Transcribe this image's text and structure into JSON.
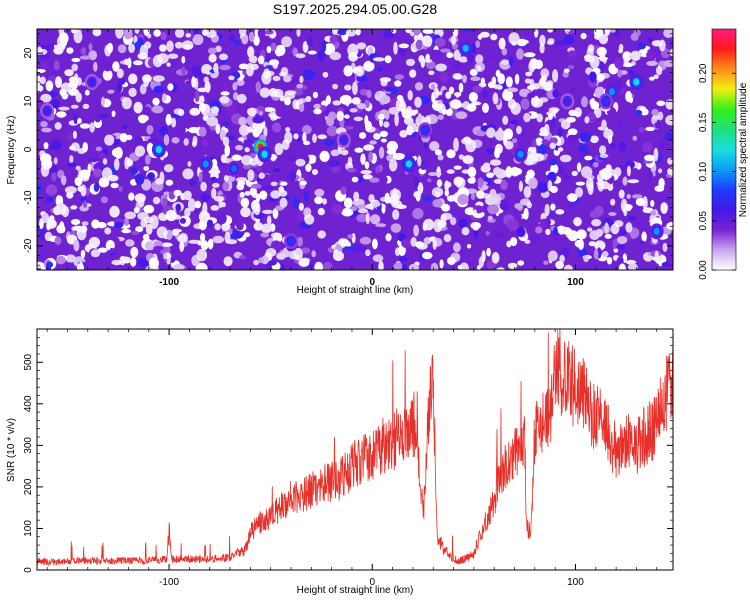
{
  "title": "S197.2025.294.05.00.G28",
  "chart_data": [
    {
      "type": "heatmap",
      "title": "S197.2025.294.05.00.G28",
      "xlabel": "Height of straight line (km)",
      "ylabel": "Frequency (Hz)",
      "xlim": [
        -165,
        148
      ],
      "ylim": [
        -25,
        25
      ],
      "x_ticks": [
        -100,
        0,
        100
      ],
      "x_tick_labels": [
        "-100",
        "0",
        "100"
      ],
      "y_ticks": [
        -20,
        -10,
        0,
        10,
        20
      ],
      "y_tick_labels": [
        "-20",
        "-10",
        "0",
        "10",
        "20"
      ],
      "colorbar": {
        "label": "Normalized spectral amplitude",
        "range": [
          0,
          0.245
        ],
        "ticks": [
          0.0,
          0.05,
          0.1,
          0.15,
          0.2
        ],
        "tick_labels": [
          "0.00",
          "0.05",
          "0.10",
          "0.15",
          "0.20"
        ],
        "colormap": [
          "#ffffff",
          "#c9a6ee",
          "#7a1fd4",
          "#4418e8",
          "#1e3cff",
          "#0a9ef5",
          "#18e0e0",
          "#1fe07a",
          "#35f01a",
          "#f0f010",
          "#ff8c1a",
          "#ff1a1a",
          "#ff1a7f"
        ]
      },
      "peak": {
        "x": -55,
        "y": 0.5,
        "value": 0.23
      },
      "hotspots": [
        {
          "x": -55,
          "y": 0.5,
          "value": 0.23
        },
        {
          "x": -53,
          "y": -1,
          "value": 0.12
        },
        {
          "x": -105,
          "y": 0,
          "value": 0.12
        },
        {
          "x": 18,
          "y": -3,
          "value": 0.12
        },
        {
          "x": 46,
          "y": 21,
          "value": 0.11
        },
        {
          "x": 130,
          "y": 14,
          "value": 0.12
        },
        {
          "x": 118,
          "y": 12,
          "value": 0.1
        },
        {
          "x": 140,
          "y": -17,
          "value": 0.1
        },
        {
          "x": -68,
          "y": -4,
          "value": 0.09
        },
        {
          "x": -82,
          "y": -3,
          "value": 0.1
        },
        {
          "x": 26,
          "y": 4,
          "value": 0.08
        },
        {
          "x": 73,
          "y": -1,
          "value": 0.1
        },
        {
          "x": 115,
          "y": 10,
          "value": 0.08
        },
        {
          "x": -160,
          "y": 8,
          "value": 0.07
        },
        {
          "x": -40,
          "y": -19,
          "value": 0.08
        },
        {
          "x": 96,
          "y": 10,
          "value": 0.07
        },
        {
          "x": -138,
          "y": 14,
          "value": 0.07
        },
        {
          "x": -14,
          "y": 2,
          "value": 0.07
        }
      ]
    },
    {
      "type": "line",
      "xlabel": "Height of straight line (km)",
      "ylabel": "SNR (10 * v/v)",
      "xlim": [
        -165,
        148
      ],
      "ylim": [
        0,
        580
      ],
      "x_ticks": [
        -100,
        0,
        100
      ],
      "x_tick_labels": [
        "-100",
        "0",
        "100"
      ],
      "y_ticks": [
        0,
        100,
        200,
        300,
        400,
        500
      ],
      "y_tick_labels": [
        "0",
        "100",
        "200",
        "300",
        "400",
        "500"
      ],
      "color": "#e8302a",
      "series": [
        {
          "x": [
            -165,
            -160,
            -150,
            -140,
            -130,
            -120,
            -110,
            -101,
            -100,
            -99,
            -90,
            -80,
            -70,
            -65,
            -62,
            -60,
            -55,
            -50,
            -45,
            -40,
            -35,
            -30,
            -25,
            -20,
            -15,
            -10,
            -5,
            0,
            5,
            10,
            15,
            20,
            22,
            24,
            25,
            26,
            28,
            30,
            31,
            32,
            35,
            38,
            40,
            42,
            45,
            48,
            50,
            55,
            60,
            62,
            65,
            70,
            75,
            76,
            78,
            80,
            85,
            88,
            90,
            92,
            95,
            100,
            105,
            110,
            115,
            120,
            125,
            130,
            135,
            140,
            145,
            148
          ],
          "y": [
            20,
            18,
            20,
            22,
            20,
            22,
            22,
            25,
            100,
            25,
            25,
            25,
            30,
            40,
            50,
            90,
            110,
            120,
            150,
            170,
            175,
            190,
            200,
            205,
            215,
            245,
            260,
            270,
            290,
            300,
            320,
            335,
            360,
            160,
            150,
            170,
            400,
            420,
            260,
            80,
            50,
            35,
            30,
            20,
            25,
            30,
            40,
            100,
            160,
            200,
            240,
            270,
            300,
            100,
            85,
            330,
            360,
            390,
            480,
            460,
            450,
            430,
            400,
            360,
            330,
            280,
            300,
            290,
            320,
            340,
            420,
            480
          ]
        }
      ]
    }
  ]
}
